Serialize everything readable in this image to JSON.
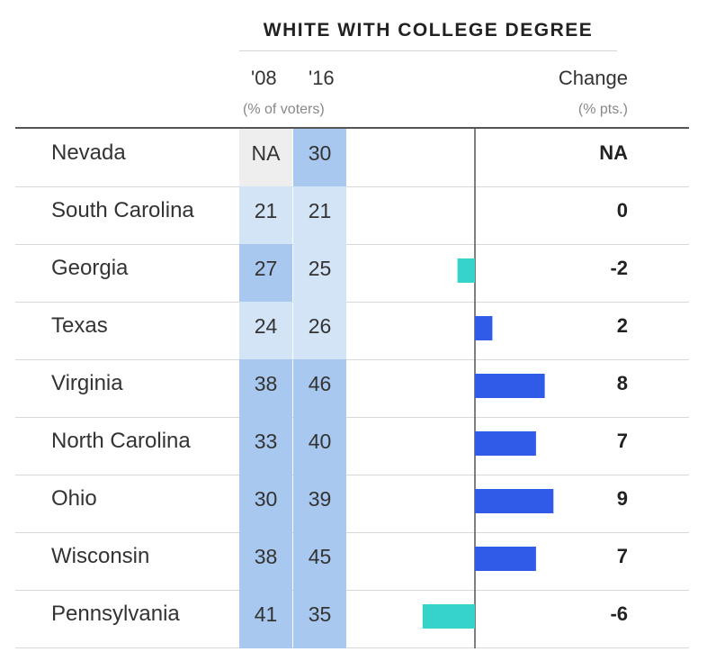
{
  "header": {
    "title": "WHITE WITH COLLEGE DEGREE",
    "col_08": "'08",
    "col_16": "'16",
    "col_pct_sub": "(% of voters)",
    "col_change": "Change",
    "col_change_sub": "(% pts.)"
  },
  "colors": {
    "cell_light": "#d4e4f7",
    "cell_dark": "#a9c8f0",
    "cell_na": "#eeeeee",
    "bar_positive": "#2f5be8",
    "bar_negative": "#35d3c9",
    "zero_line": "#555555"
  },
  "chart_data": {
    "type": "bar",
    "title": "WHITE WITH COLLEGE DEGREE",
    "categories": [
      "Nevada",
      "South Carolina",
      "Georgia",
      "Texas",
      "Virginia",
      "North Carolina",
      "Ohio",
      "Wisconsin",
      "Pennsylvania"
    ],
    "series": [
      {
        "name": "'08",
        "values": [
          null,
          21,
          27,
          24,
          38,
          33,
          30,
          38,
          41
        ]
      },
      {
        "name": "'16",
        "values": [
          30,
          21,
          25,
          26,
          46,
          40,
          39,
          45,
          35
        ]
      },
      {
        "name": "Change",
        "values": [
          null,
          0,
          -2,
          2,
          8,
          7,
          9,
          7,
          -6
        ]
      }
    ],
    "rows": [
      {
        "state": "Nevada",
        "v08": "NA",
        "v16": "30",
        "change_label": "NA"
      },
      {
        "state": "South Carolina",
        "v08": "21",
        "v16": "21",
        "change_label": "0"
      },
      {
        "state": "Georgia",
        "v08": "27",
        "v16": "25",
        "change_label": "-2"
      },
      {
        "state": "Texas",
        "v08": "24",
        "v16": "26",
        "change_label": "2"
      },
      {
        "state": "Virginia",
        "v08": "38",
        "v16": "46",
        "change_label": "8"
      },
      {
        "state": "North Carolina",
        "v08": "33",
        "v16": "40",
        "change_label": "7"
      },
      {
        "state": "Ohio",
        "v08": "30",
        "v16": "39",
        "change_label": "9"
      },
      {
        "state": "Wisconsin",
        "v08": "38",
        "v16": "45",
        "change_label": "7"
      },
      {
        "state": "Pennsylvania",
        "v08": "41",
        "v16": "35",
        "change_label": "-6"
      }
    ],
    "change_values": [
      null,
      0,
      -2,
      2,
      8,
      7,
      9,
      7,
      -6
    ],
    "grid": false,
    "legend": "none"
  }
}
